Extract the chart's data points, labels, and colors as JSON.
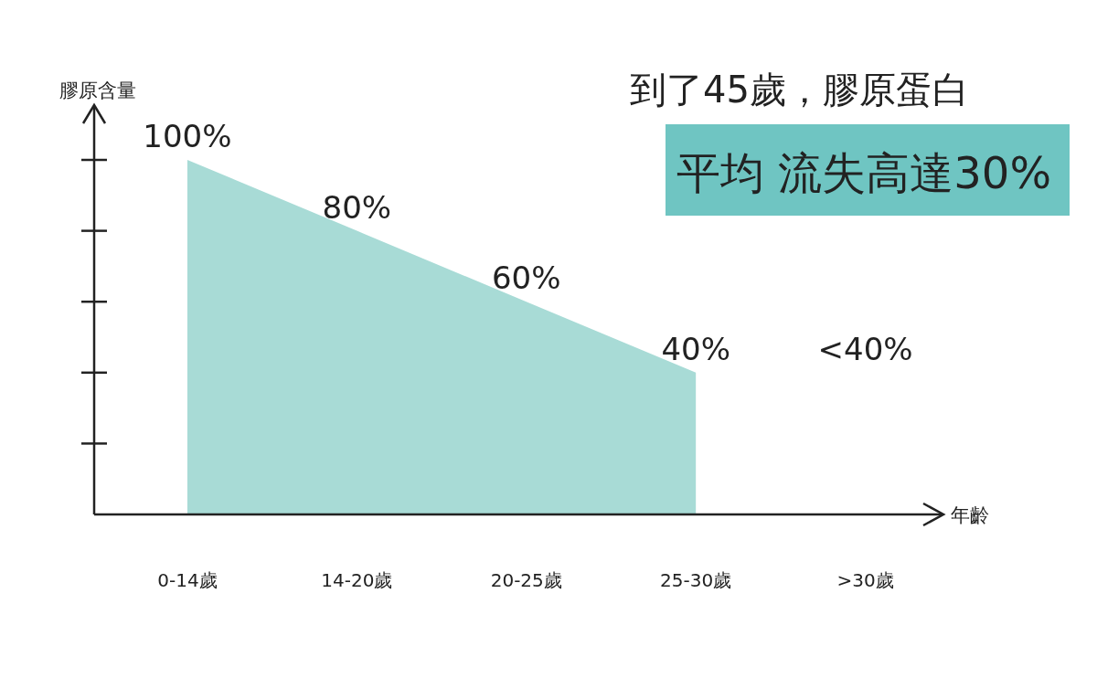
{
  "chart_data": {
    "type": "area",
    "title": "到了45歲，膠原蛋白",
    "subtitle": "平均 流失高達30%",
    "ylabel": "膠原含量",
    "xlabel": "年齡",
    "categories": [
      "0-14歲",
      "14-20歲",
      "20-25歲",
      "25-30歲",
      ">30歲"
    ],
    "values": [
      100,
      80,
      60,
      40,
      null
    ],
    "value_labels": [
      "100%",
      "80%",
      "60%",
      "40%",
      "<40%"
    ],
    "color": "#a8dbd6"
  }
}
